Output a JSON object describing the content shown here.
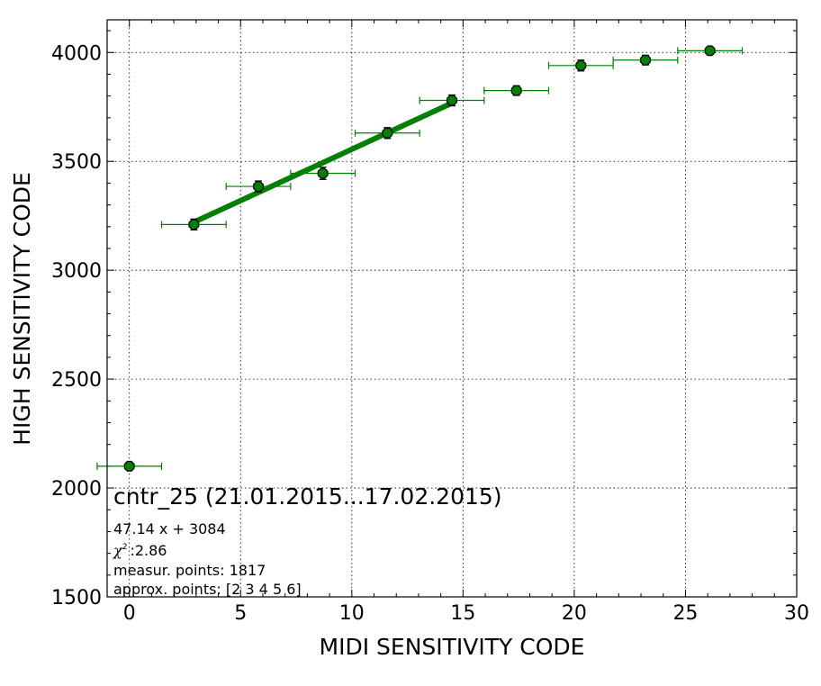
{
  "chart_data": {
    "type": "scatter",
    "xlabel": "MIDI SENSITIVITY CODE",
    "ylabel": "HIGH SENSITIVITY CODE",
    "xlim": [
      -1,
      30
    ],
    "ylim": [
      1500,
      4150
    ],
    "x_ticks": [
      0,
      5,
      10,
      15,
      20,
      25,
      30
    ],
    "y_ticks": [
      1500,
      2000,
      2500,
      3000,
      3500,
      4000
    ],
    "grid": true,
    "colors": {
      "series": "#008000",
      "marker_edge": "#000000",
      "axes": "#000000"
    },
    "series": [
      {
        "type": "scatter-errorbar",
        "x": [
          0,
          2.9,
          5.8,
          8.7,
          11.6,
          14.5,
          17.4,
          20.3,
          23.2,
          26.1
        ],
        "y": [
          2100,
          3210,
          3385,
          3445,
          3630,
          3780,
          3825,
          3940,
          3965,
          4008
        ],
        "xerr": [
          1.45,
          1.45,
          1.45,
          1.45,
          1.45,
          1.45,
          1.45,
          1.45,
          1.45,
          1.45
        ],
        "yerr": [
          18,
          25,
          25,
          28,
          25,
          25,
          22,
          25,
          22,
          18
        ]
      },
      {
        "type": "fit-line",
        "slope": 47.14,
        "intercept": 3084,
        "x_range": [
          2.9,
          14.5
        ]
      }
    ],
    "annotations": {
      "title": "cntr_25 (21.01.2015...17.02.2015)",
      "fit_equation": "47.14 x + 3084",
      "chi2_symbol": "χ",
      "chi2_superscript": "2",
      "chi2_value": ":2.86",
      "measur_points": "measur. points: 1817",
      "approx_points": "approx. points: [2 3 4 5 6]"
    }
  }
}
